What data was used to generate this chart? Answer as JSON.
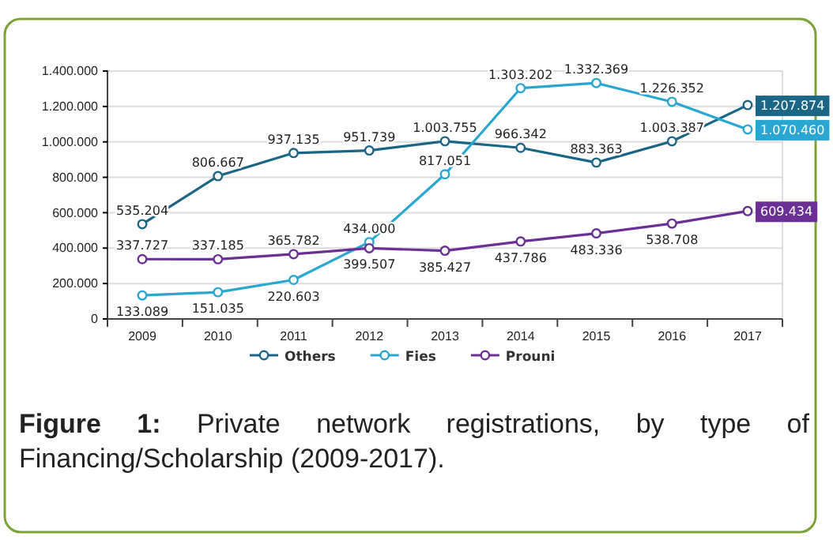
{
  "chart_data": {
    "type": "line",
    "categories": [
      "2009",
      "2010",
      "2011",
      "2012",
      "2013",
      "2014",
      "2015",
      "2016",
      "2017"
    ],
    "series": [
      {
        "name": "Others",
        "color": "#1b6585",
        "values": [
          535204,
          806667,
          937135,
          951739,
          1003755,
          966342,
          883363,
          1003387,
          1207874
        ],
        "value_labels": [
          "535.204",
          "806.667",
          "937.135",
          "951.739",
          "1.003.755",
          "966.342",
          "883.363",
          "1.003.387",
          "1.207.874"
        ]
      },
      {
        "name": "Fies",
        "color": "#2aa6d2",
        "values": [
          133089,
          151035,
          220603,
          434000,
          817051,
          1303202,
          1332369,
          1226352,
          1070460
        ],
        "value_labels": [
          "133.089",
          "151.035",
          "220.603",
          "434.000",
          "817.051",
          "1.303.202",
          "1.332.369",
          "1.226.352",
          "1.070.460"
        ]
      },
      {
        "name": "Prouni",
        "color": "#6a3096",
        "values": [
          337727,
          337185,
          365782,
          399507,
          385427,
          437786,
          483336,
          538708,
          609434
        ],
        "value_labels": [
          "337.727",
          "337.185",
          "365.782",
          "399.507",
          "385.427",
          "437.786",
          "483.336",
          "538.708",
          "609.434"
        ]
      }
    ],
    "ylim": [
      0,
      1400000
    ],
    "yticks": [
      {
        "value": 0,
        "label": "0"
      },
      {
        "value": 200000,
        "label": "200.000"
      },
      {
        "value": 400000,
        "label": "400.000"
      },
      {
        "value": 600000,
        "label": "600.000"
      },
      {
        "value": 800000,
        "label": "800.000"
      },
      {
        "value": 1000000,
        "label": "1.000.000"
      },
      {
        "value": 1200000,
        "label": "1.200.000"
      },
      {
        "value": 1400000,
        "label": "1.400.000"
      }
    ],
    "grid": "y",
    "legend": "bottom",
    "marker": "circle",
    "line_style": "solid",
    "annotations": [
      "Figure 1: Private network registrations, by type of Financing/Scholarship (2009-2017)."
    ]
  }
}
